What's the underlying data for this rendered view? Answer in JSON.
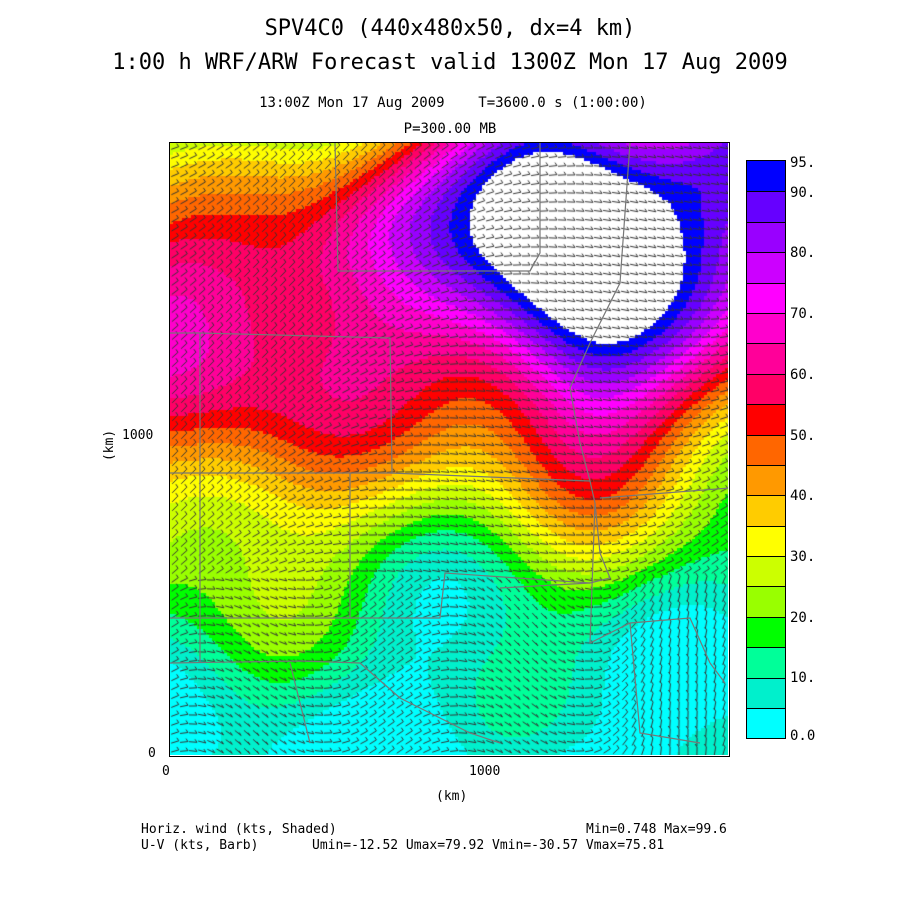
{
  "title": {
    "line1": "SPV4C0 (440x480x50, dx=4 km)",
    "line2": "1:00 h WRF/ARW Forecast valid 1300Z Mon 17 Aug 2009"
  },
  "subtitle": {
    "time": "13:00Z Mon 17 Aug 2009    T=3600.0 s (1:00:00)",
    "level": "P=300.00 MB"
  },
  "axes": {
    "x_label": "(km)",
    "y_label": "(km)",
    "x_ticks": [
      "0",
      "1000"
    ],
    "y_ticks": [
      "0",
      "1000"
    ]
  },
  "colorbar": {
    "labels": [
      "95.",
      "90.",
      "80.",
      "70.",
      "60.",
      "50.",
      "40.",
      "30.",
      "20.",
      "10.",
      "0.0"
    ],
    "bins_bottom_to_top": [
      0,
      5,
      10,
      15,
      20,
      25,
      30,
      35,
      40,
      45,
      50,
      55,
      60,
      65,
      70,
      75,
      80,
      85,
      90,
      95
    ],
    "colors_bottom_to_top": [
      "#00ffff",
      "#00f0cc",
      "#00ff99",
      "#00ff00",
      "#99ff00",
      "#ccff00",
      "#ffff00",
      "#ffcc00",
      "#ff9900",
      "#ff6600",
      "#ff0000",
      "#ff0066",
      "#ff0099",
      "#ff00cc",
      "#ff00ff",
      "#cc00ff",
      "#9900ff",
      "#6600ff",
      "#0000ff"
    ]
  },
  "footer": {
    "field1": "Horiz. wind (kts, Shaded)",
    "field1_stats": "Min=0.748 Max=99.6",
    "field2": "U-V (kts, Barb)",
    "field2_stats": "Umin=-12.52 Umax=79.92 Vmin=-30.57 Vmax=75.81"
  }
}
